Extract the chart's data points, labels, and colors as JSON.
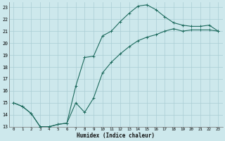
{
  "xlabel": "Humidex (Indice chaleur)",
  "background_color": "#cde8ec",
  "grid_color": "#aacdd4",
  "line_color": "#1e6b5e",
  "xlim": [
    -0.5,
    23.5
  ],
  "ylim": [
    13,
    23.4
  ],
  "xticks": [
    0,
    1,
    2,
    3,
    4,
    5,
    6,
    7,
    8,
    9,
    10,
    11,
    12,
    13,
    14,
    15,
    16,
    17,
    18,
    19,
    20,
    21,
    22,
    23
  ],
  "yticks": [
    13,
    14,
    15,
    16,
    17,
    18,
    19,
    20,
    21,
    22,
    23
  ],
  "curve1_x": [
    0,
    1,
    2,
    3,
    4,
    5,
    6,
    7,
    8,
    9,
    10,
    11,
    12,
    13,
    14,
    15,
    16,
    17,
    18,
    19,
    20,
    21,
    22,
    23
  ],
  "curve1_y": [
    15.0,
    14.7,
    14.1,
    13.0,
    13.0,
    13.2,
    13.3,
    16.4,
    18.8,
    18.9,
    20.6,
    21.0,
    21.8,
    22.5,
    23.1,
    23.2,
    22.8,
    22.2,
    21.7,
    21.5,
    21.4,
    21.4,
    21.5,
    21.0
  ],
  "curve2_x": [
    0,
    1,
    2,
    3,
    4,
    5,
    6,
    7,
    8,
    9,
    10,
    11,
    12,
    13,
    14,
    15,
    16,
    17,
    18,
    19,
    20,
    21,
    22,
    23
  ],
  "curve2_y": [
    15.0,
    14.7,
    14.1,
    13.0,
    13.0,
    13.2,
    13.3,
    15.0,
    14.2,
    15.4,
    17.5,
    18.4,
    19.1,
    19.7,
    20.2,
    20.5,
    20.7,
    21.0,
    21.2,
    21.0,
    21.1,
    21.1,
    21.1,
    21.0
  ]
}
